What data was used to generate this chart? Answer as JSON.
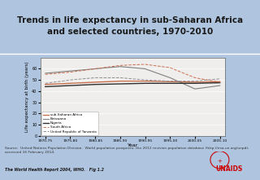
{
  "title": "Trends in life expectancy in sub-Saharan Africa\nand selected countries, 1970-2010",
  "title_fontsize": 7.5,
  "background_color": "#afc5df",
  "plot_bg_color": "#f0eeec",
  "xlabel": "Year",
  "ylabel": "Life expectancy at birth (years)",
  "ylabel_fontsize": 4.0,
  "xlabel_fontsize": 4.5,
  "x_ticks": [
    "1970-75",
    "1975-80",
    "1980-85",
    "1985-90",
    "1990-95",
    "1995-00",
    "2000-05",
    "2005-10"
  ],
  "x_vals": [
    0,
    1,
    2,
    3,
    4,
    5,
    6,
    7
  ],
  "ylim": [
    0,
    70
  ],
  "yticks": [
    0,
    10,
    20,
    30,
    40,
    50,
    60
  ],
  "series": [
    {
      "key": "sub_saharan_africa",
      "label": "sub-Saharan Africa",
      "color": "#c87050",
      "linewidth": 1.0,
      "linestyle": "solid",
      "values": [
        46,
        47,
        48,
        49,
        49,
        48.5,
        48,
        48.5
      ]
    },
    {
      "key": "botswana",
      "label": "Botswana",
      "color": "#808080",
      "linewidth": 0.8,
      "linestyle": "solid",
      "values": [
        56,
        58,
        60,
        62,
        60,
        52,
        42,
        45
      ]
    },
    {
      "key": "nigeria",
      "label": "Nigeria",
      "color": "#303030",
      "linewidth": 1.0,
      "linestyle": "solid",
      "values": [
        44,
        45,
        46,
        46.5,
        47,
        47,
        47,
        47.5
      ]
    },
    {
      "key": "south_africa",
      "label": "South Africa",
      "color": "#c87050",
      "linewidth": 0.7,
      "linestyle": "dashed",
      "values": [
        55,
        57,
        60,
        63,
        64,
        61,
        52,
        48
      ]
    },
    {
      "key": "united_rep_tanzania",
      "label": "United Republic of Tanzania",
      "color": "#909090",
      "linewidth": 0.7,
      "linestyle": "dashed",
      "values": [
        47,
        50,
        52,
        52,
        50,
        49,
        49,
        51
      ]
    }
  ],
  "source_text": "Source:  United Nations Population Division.  World population prospects: the 2012 revision population database (http://esa.un.org/unpd),\naccessed 16 February 2014.",
  "caption_text": "The World Health Report 2004, WHO.   Fig 1.2",
  "source_fontsize": 3.2,
  "caption_fontsize": 3.4
}
